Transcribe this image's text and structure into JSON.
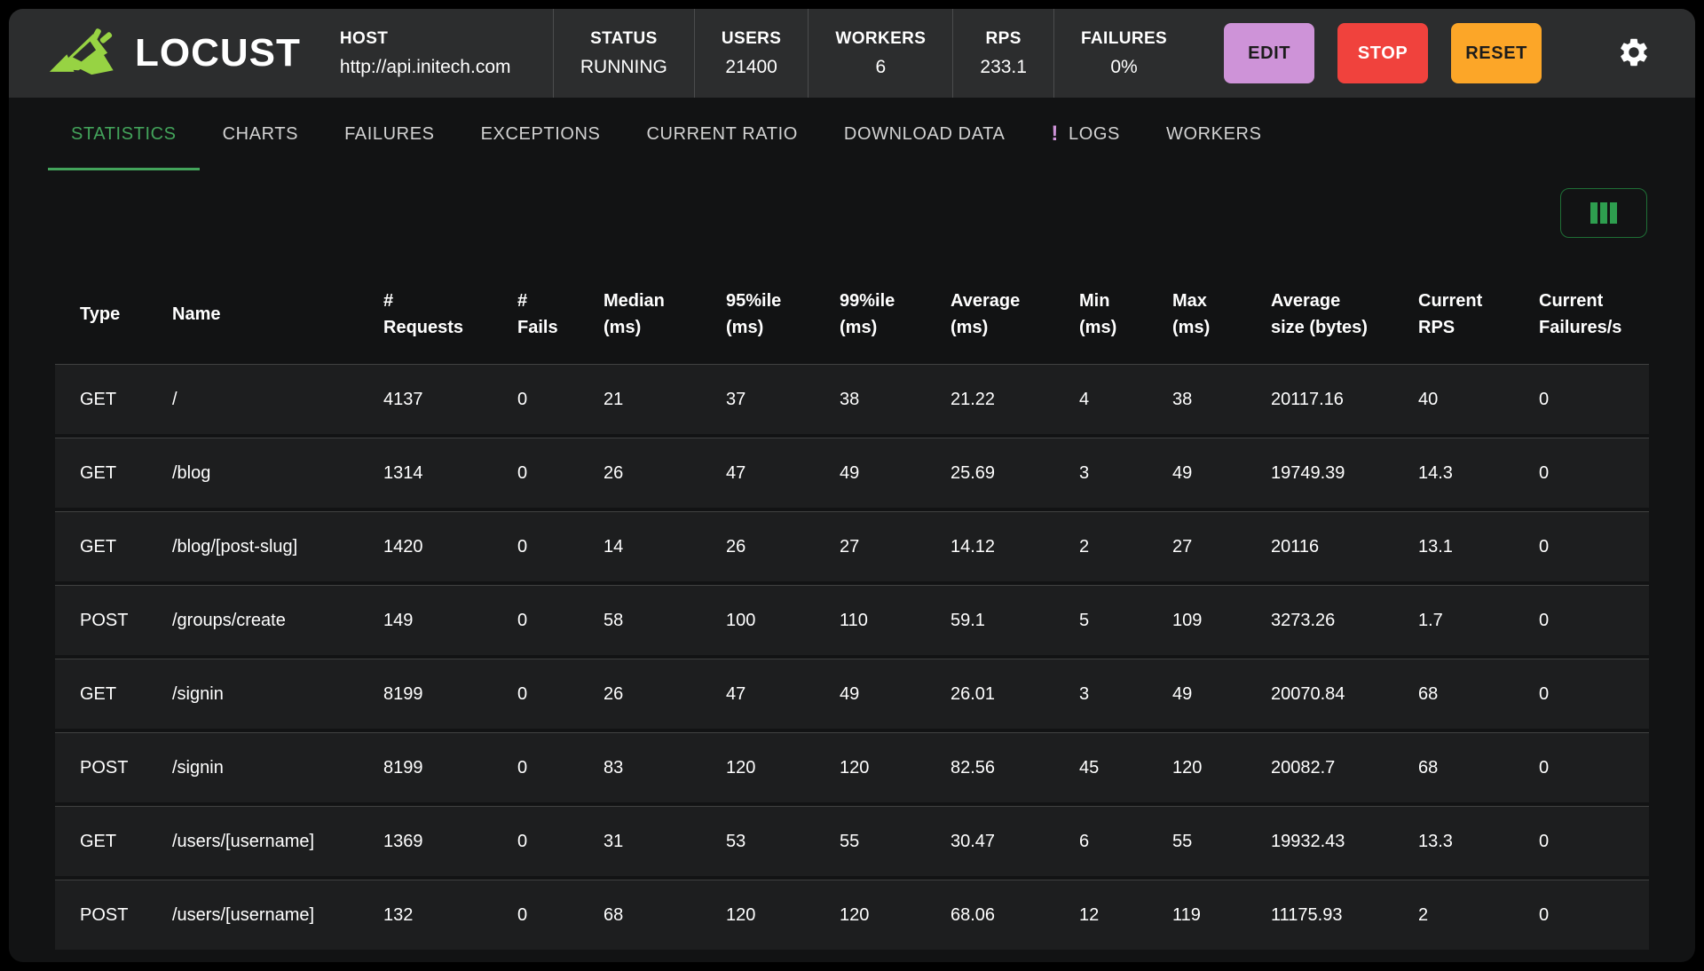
{
  "brand": {
    "name": "LOCUST"
  },
  "colors": {
    "accent_green": "#43a45b",
    "logo_green": "#97d343",
    "edit_bg": "#ce93d8",
    "stop_bg": "#f0423d",
    "reset_bg": "#fca628",
    "logs_alert": "#ce93d8"
  },
  "header": {
    "host": {
      "label": "HOST",
      "value": "http://api.initech.com"
    },
    "stats": [
      {
        "label": "STATUS",
        "value": "RUNNING"
      },
      {
        "label": "USERS",
        "value": "21400"
      },
      {
        "label": "WORKERS",
        "value": "6"
      },
      {
        "label": "RPS",
        "value": "233.1"
      },
      {
        "label": "FAILURES",
        "value": "0%"
      }
    ],
    "buttons": {
      "edit": "EDIT",
      "stop": "STOP",
      "reset": "RESET"
    }
  },
  "tabs": [
    {
      "label": "STATISTICS",
      "active": true
    },
    {
      "label": "CHARTS",
      "active": false
    },
    {
      "label": "FAILURES",
      "active": false
    },
    {
      "label": "EXCEPTIONS",
      "active": false
    },
    {
      "label": "CURRENT RATIO",
      "active": false
    },
    {
      "label": "DOWNLOAD DATA",
      "active": false
    },
    {
      "label": "LOGS",
      "active": false,
      "alert": "!"
    },
    {
      "label": "WORKERS",
      "active": false
    }
  ],
  "table": {
    "columns": [
      [
        "Type"
      ],
      [
        "Name"
      ],
      [
        "#",
        "Requests"
      ],
      [
        "#",
        "Fails"
      ],
      [
        "Median",
        "(ms)"
      ],
      [
        "95%ile",
        "(ms)"
      ],
      [
        "99%ile",
        "(ms)"
      ],
      [
        "Average",
        "(ms)"
      ],
      [
        "Min",
        "(ms)"
      ],
      [
        "Max",
        "(ms)"
      ],
      [
        "Average",
        "size (bytes)"
      ],
      [
        "Current",
        "RPS"
      ],
      [
        "Current",
        "Failures/s"
      ]
    ],
    "rows": [
      {
        "cells": [
          "GET",
          "/",
          "4137",
          "0",
          "21",
          "37",
          "38",
          "21.22",
          "4",
          "38",
          "20117.16",
          "40",
          "0"
        ]
      },
      {
        "cells": [
          "GET",
          "/blog",
          "1314",
          "0",
          "26",
          "47",
          "49",
          "25.69",
          "3",
          "49",
          "19749.39",
          "14.3",
          "0"
        ]
      },
      {
        "cells": [
          "GET",
          "/blog/[post-slug]",
          "1420",
          "0",
          "14",
          "26",
          "27",
          "14.12",
          "2",
          "27",
          "20116",
          "13.1",
          "0"
        ]
      },
      {
        "cells": [
          "POST",
          "/groups/create",
          "149",
          "0",
          "58",
          "100",
          "110",
          "59.1",
          "5",
          "109",
          "3273.26",
          "1.7",
          "0"
        ]
      },
      {
        "cells": [
          "GET",
          "/signin",
          "8199",
          "0",
          "26",
          "47",
          "49",
          "26.01",
          "3",
          "49",
          "20070.84",
          "68",
          "0"
        ]
      },
      {
        "cells": [
          "POST",
          "/signin",
          "8199",
          "0",
          "83",
          "120",
          "120",
          "82.56",
          "45",
          "120",
          "20082.7",
          "68",
          "0"
        ]
      },
      {
        "cells": [
          "GET",
          "/users/[username]",
          "1369",
          "0",
          "31",
          "53",
          "55",
          "30.47",
          "6",
          "55",
          "19932.43",
          "13.3",
          "0"
        ]
      },
      {
        "cells": [
          "POST",
          "/users/[username]",
          "132",
          "0",
          "68",
          "120",
          "120",
          "68.06",
          "12",
          "119",
          "11175.93",
          "2",
          "0"
        ]
      }
    ]
  }
}
